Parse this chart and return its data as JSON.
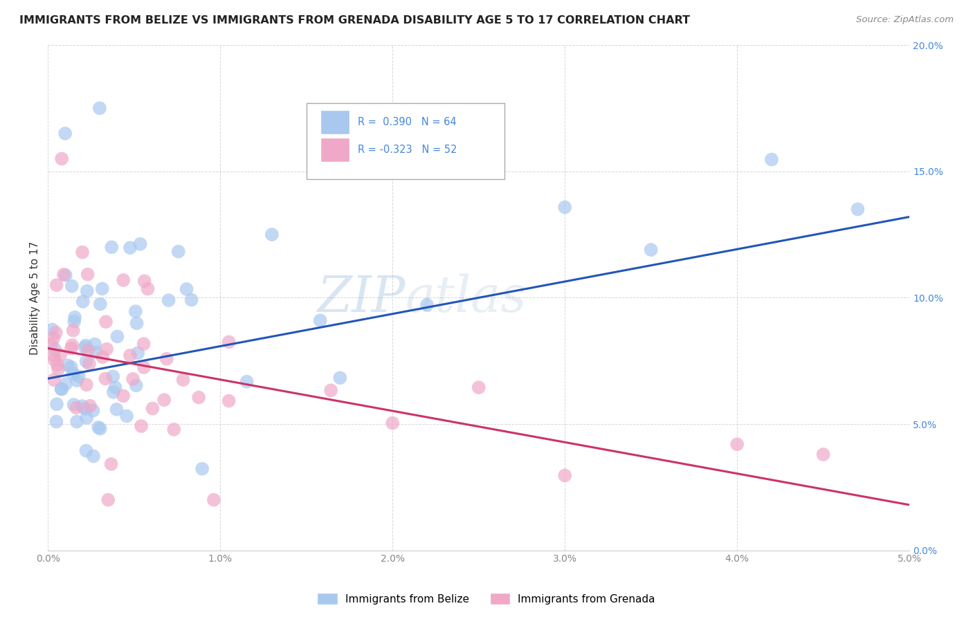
{
  "title": "IMMIGRANTS FROM BELIZE VS IMMIGRANTS FROM GRENADA DISABILITY AGE 5 TO 17 CORRELATION CHART",
  "source": "Source: ZipAtlas.com",
  "ylabel": "Disability Age 5 to 17",
  "legend_label1": "Immigrants from Belize",
  "legend_label2": "Immigrants from Grenada",
  "r1": 0.39,
  "n1": 64,
  "r2": -0.323,
  "n2": 52,
  "xlim": [
    0.0,
    0.05
  ],
  "ylim": [
    0.0,
    0.2
  ],
  "xticks": [
    0.0,
    0.01,
    0.02,
    0.03,
    0.04,
    0.05
  ],
  "yticks": [
    0.0,
    0.05,
    0.1,
    0.15,
    0.2
  ],
  "color_belize": "#a8c8f0",
  "color_grenada": "#f0a8c8",
  "line_color_belize": "#2255bb",
  "line_color_grenada": "#cc3366",
  "watermark_zip": "ZIP",
  "watermark_atlas": "atlas",
  "line1_x0": 0.0,
  "line1_y0": 0.068,
  "line1_x1": 0.05,
  "line1_y1": 0.132,
  "line2_x0": 0.0,
  "line2_y0": 0.08,
  "line2_x1": 0.05,
  "line2_y1": 0.018
}
